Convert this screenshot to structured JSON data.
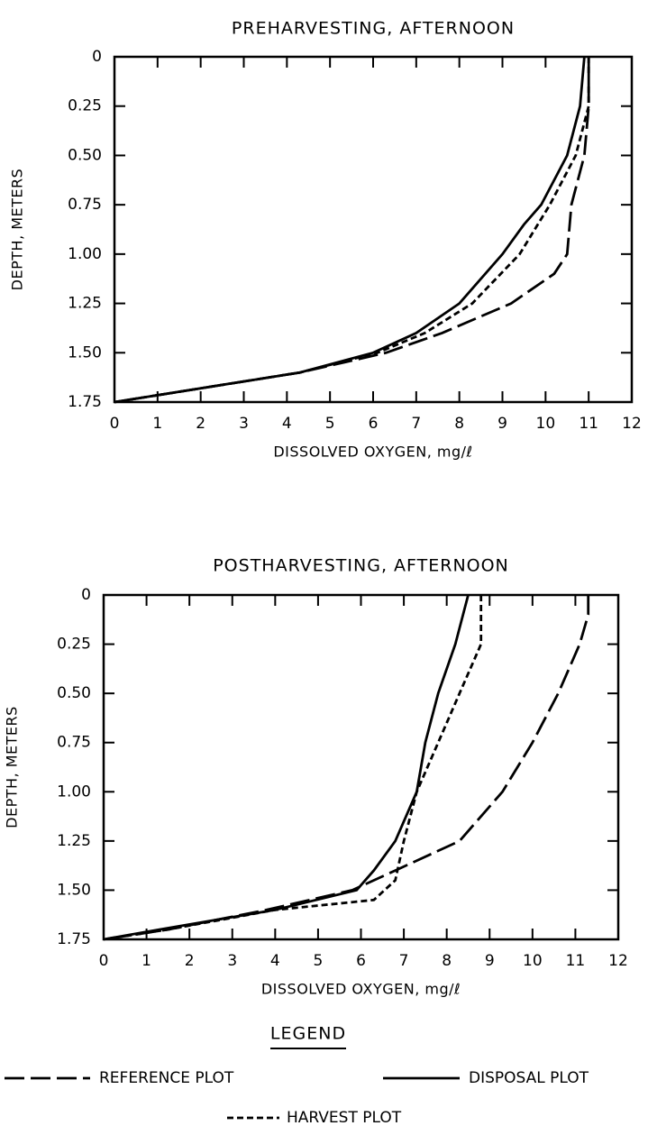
{
  "chart_data": [
    {
      "type": "line",
      "title": "PREHARVESTING, AFTERNOON",
      "x_label": "DISSOLVED OXYGEN, mg/ℓ",
      "y_label": "DEPTH, METERS",
      "xlim": [
        0,
        12
      ],
      "xticks": [
        0,
        1,
        2,
        3,
        4,
        5,
        6,
        7,
        8,
        9,
        10,
        11,
        12
      ],
      "ylim": [
        0,
        1.75
      ],
      "y_inverted": true,
      "yticks": [
        0,
        0.25,
        {
          "value": 0.5,
          "label": "0.50"
        },
        0.75,
        {
          "value": 1.0,
          "label": "1.00"
        },
        1.25,
        {
          "value": 1.5,
          "label": "1.50"
        },
        1.75
      ],
      "grid": false,
      "series": [
        {
          "style": "long-dash",
          "color": "#000000",
          "x": [
            11.0,
            11.0,
            10.9,
            10.6,
            10.5,
            10.2,
            9.2,
            7.6,
            6.3,
            4.3,
            0
          ],
          "y": [
            0,
            0.25,
            0.5,
            0.75,
            1.0,
            1.1,
            1.25,
            1.4,
            1.5,
            1.6,
            1.75
          ]
        },
        {
          "style": "solid",
          "color": "#000000",
          "x": [
            10.9,
            10.8,
            10.5,
            9.9,
            9.5,
            9.0,
            8.0,
            7.0,
            6.0,
            4.3,
            0
          ],
          "y": [
            0,
            0.25,
            0.5,
            0.75,
            0.85,
            1.0,
            1.25,
            1.4,
            1.5,
            1.6,
            1.75
          ]
        },
        {
          "style": "short-dash",
          "color": "#000000",
          "x": [
            11.0,
            11.0,
            10.7,
            10.1,
            9.4,
            8.3,
            7.2,
            6.1,
            4.3,
            0
          ],
          "y": [
            0,
            0.25,
            0.5,
            0.75,
            1.0,
            1.25,
            1.4,
            1.5,
            1.6,
            1.75
          ]
        }
      ]
    },
    {
      "type": "line",
      "title": "POSTHARVESTING, AFTERNOON",
      "x_label": "DISSOLVED OXYGEN, mg/ℓ",
      "y_label": "DEPTH, METERS",
      "xlim": [
        0,
        12
      ],
      "xticks": [
        0,
        1,
        2,
        3,
        4,
        5,
        6,
        7,
        8,
        9,
        10,
        11,
        12
      ],
      "ylim": [
        0,
        1.75
      ],
      "y_inverted": true,
      "yticks": [
        0,
        0.25,
        {
          "value": 0.5,
          "label": "0.50"
        },
        0.75,
        {
          "value": 1.0,
          "label": "1.00"
        },
        1.25,
        {
          "value": 1.5,
          "label": "1.50"
        },
        1.75
      ],
      "grid": false,
      "legend_title": "LEGEND",
      "series": [
        {
          "name": "REFERENCE PLOT",
          "style": "long-dash",
          "color": "#000000",
          "x": [
            11.3,
            11.3,
            11.1,
            10.6,
            10.0,
            9.3,
            8.3,
            6.8,
            5.8,
            3.8,
            1.5,
            0
          ],
          "y": [
            0,
            0.1,
            0.25,
            0.5,
            0.75,
            1.0,
            1.25,
            1.4,
            1.5,
            1.6,
            1.7,
            1.75
          ]
        },
        {
          "name": "DISPOSAL PLOT",
          "style": "solid",
          "color": "#000000",
          "x": [
            8.5,
            8.2,
            7.8,
            7.5,
            7.3,
            6.8,
            6.3,
            5.9,
            4.0,
            1.3,
            0
          ],
          "y": [
            0,
            0.25,
            0.5,
            0.75,
            1.0,
            1.25,
            1.4,
            1.5,
            1.6,
            1.7,
            1.75
          ]
        },
        {
          "name": "HARVEST PLOT",
          "style": "short-dash",
          "color": "#000000",
          "x": [
            8.8,
            8.8,
            8.3,
            7.8,
            7.3,
            7.0,
            6.8,
            6.3,
            4.0,
            1.5,
            0
          ],
          "y": [
            0,
            0.25,
            0.5,
            0.75,
            1.0,
            1.25,
            1.45,
            1.55,
            1.6,
            1.7,
            1.75
          ]
        }
      ]
    }
  ]
}
